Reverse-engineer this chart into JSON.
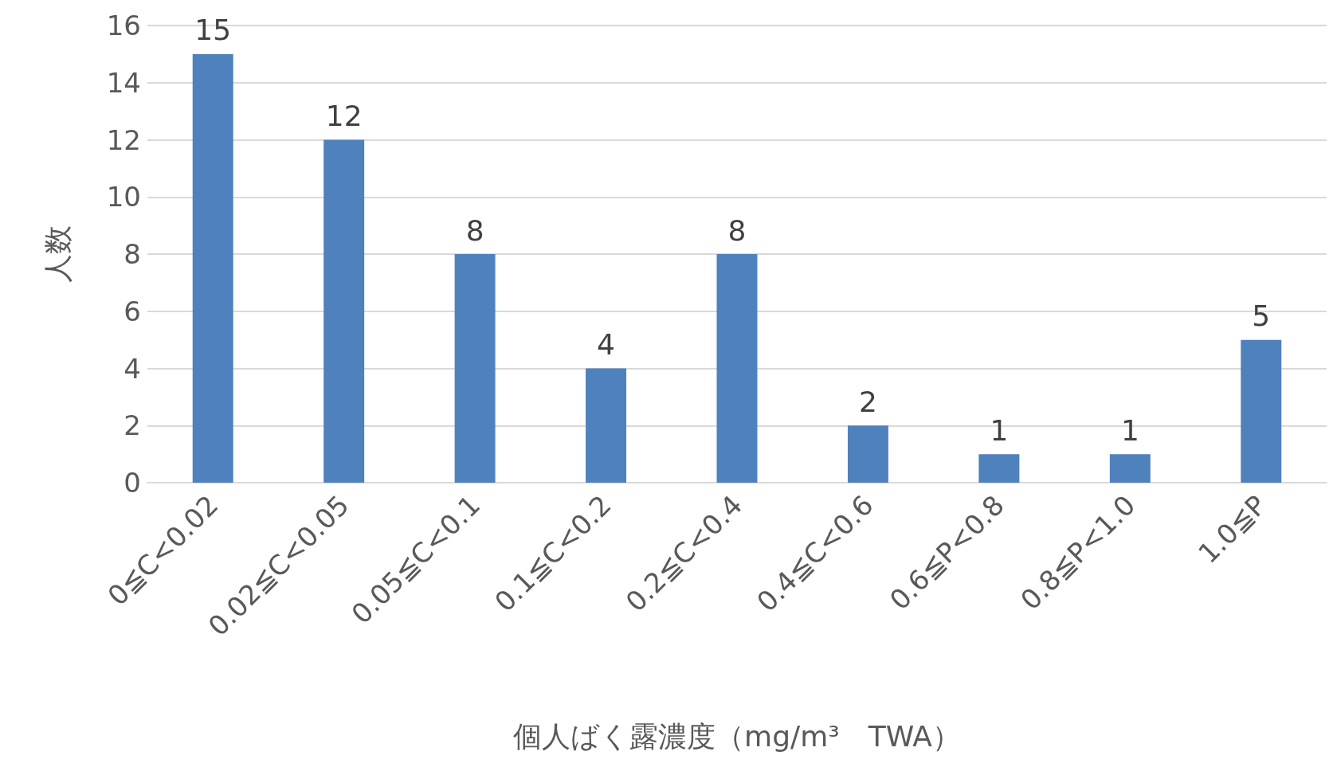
{
  "chart_data": {
    "type": "bar",
    "xlabel": "個人ばく露濃度（mg/m³　TWA）",
    "ylabel": "人数",
    "categories": [
      "0≦C<0.02",
      "0.02≦C<0.05",
      "0.05≦C<0.1",
      "0.1≦C<0.2",
      "0.2≦C<0.4",
      "0.4≦C<0.6",
      "0.6≦P<0.8",
      "0.8≦P<1.0",
      "1.0≦P"
    ],
    "values": [
      15,
      12,
      8,
      4,
      8,
      2,
      1,
      1,
      5
    ],
    "color": "#4f81bd",
    "ylim": [
      0,
      16
    ],
    "yticks": [
      0,
      2,
      4,
      6,
      8,
      10,
      12,
      14,
      16
    ],
    "grid": "y",
    "data_labels": true
  }
}
